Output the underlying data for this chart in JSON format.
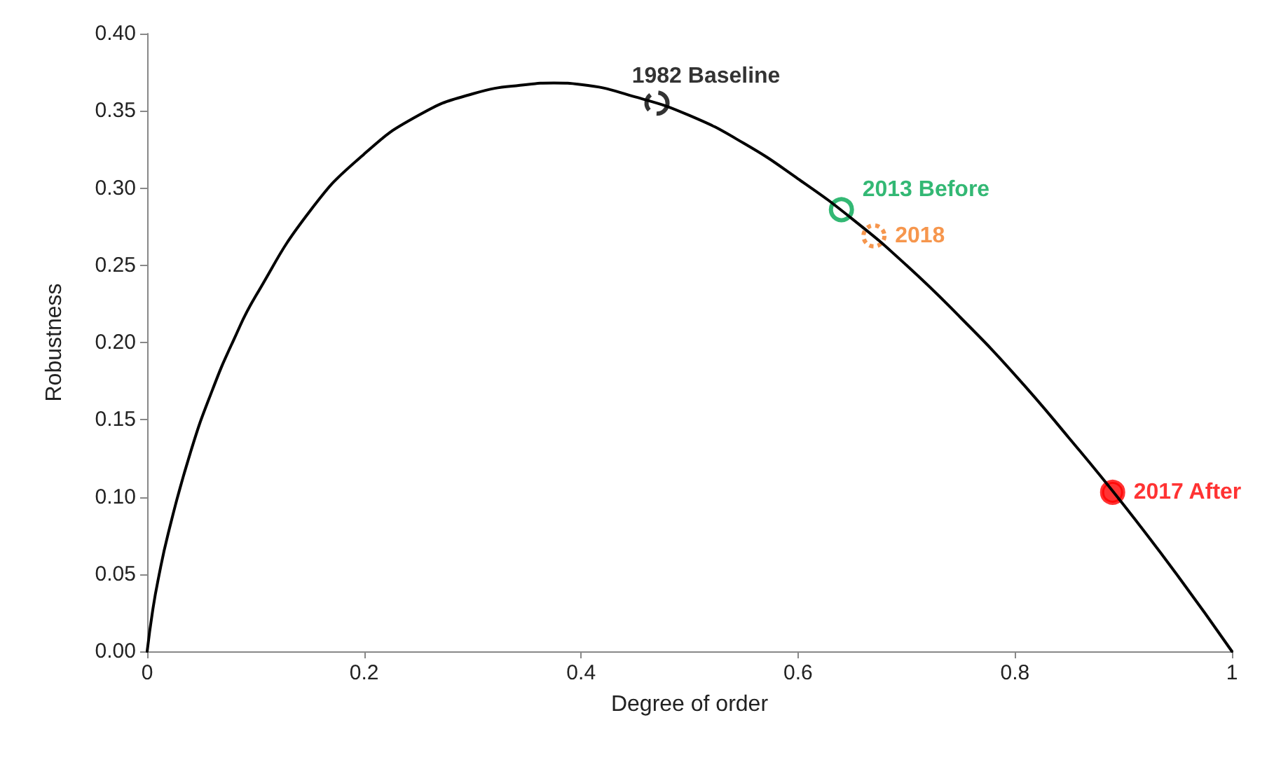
{
  "chart_data": {
    "type": "line",
    "xlabel": "Degree of order",
    "ylabel": "Robustness",
    "xlim": [
      0,
      1
    ],
    "ylim": [
      0,
      0.4
    ],
    "xticks": [
      0,
      0.2,
      0.4,
      0.6,
      0.8,
      1
    ],
    "yticks": [
      {
        "value": 0,
        "label": "0.00"
      },
      {
        "value": 0.05,
        "label": "0.05"
      },
      {
        "value": 0.1,
        "label": "0.10"
      },
      {
        "value": 0.15,
        "label": "0.15"
      },
      {
        "value": 0.2,
        "label": "0.20"
      },
      {
        "value": 0.25,
        "label": "0.25"
      },
      {
        "value": 0.3,
        "label": "0.30"
      },
      {
        "value": 0.35,
        "label": "0.35"
      },
      {
        "value": 0.4,
        "label": "0.40"
      }
    ],
    "grid": false,
    "legend": false,
    "series": [
      {
        "color": "#000000",
        "marker": "none",
        "line_style": "solid",
        "x": [
          0,
          0.005,
          0.01,
          0.02,
          0.04,
          0.06,
          0.08,
          0.1,
          0.15,
          0.2,
          0.25,
          0.3,
          0.35,
          0.375,
          0.4,
          0.45,
          0.5,
          0.55,
          0.6,
          0.65,
          0.7,
          0.75,
          0.8,
          0.85,
          0.9,
          0.95,
          1
        ],
        "values": [
          0,
          0.026,
          0.046,
          0.078,
          0.129,
          0.169,
          0.202,
          0.23,
          0.285,
          0.322,
          0.347,
          0.361,
          0.367,
          0.368,
          0.367,
          0.359,
          0.347,
          0.329,
          0.306,
          0.28,
          0.25,
          0.216,
          0.179,
          0.138,
          0.095,
          0.049,
          0
        ]
      },
      {
        "type": "scatter",
        "name": "1982 Baseline",
        "color": "#000000",
        "marker": "circle",
        "line_style": "dashed",
        "x": [
          0.47
        ],
        "values": [
          0.355
        ]
      },
      {
        "type": "scatter",
        "name": "2013 Before",
        "color": "#00a651",
        "marker": "circle",
        "line_style": "solid",
        "x": [
          0.64
        ],
        "values": [
          0.286
        ]
      },
      {
        "type": "scatter",
        "name": "2018",
        "color": "#f47c20",
        "marker": "circle",
        "line_style": "dotted",
        "x": [
          0.67
        ],
        "values": [
          0.269
        ]
      },
      {
        "type": "scatter",
        "name": "2017 After",
        "color": "#ff0000",
        "marker": "circle",
        "x": [
          0.89
        ],
        "values": [
          0.103
        ]
      }
    ]
  }
}
